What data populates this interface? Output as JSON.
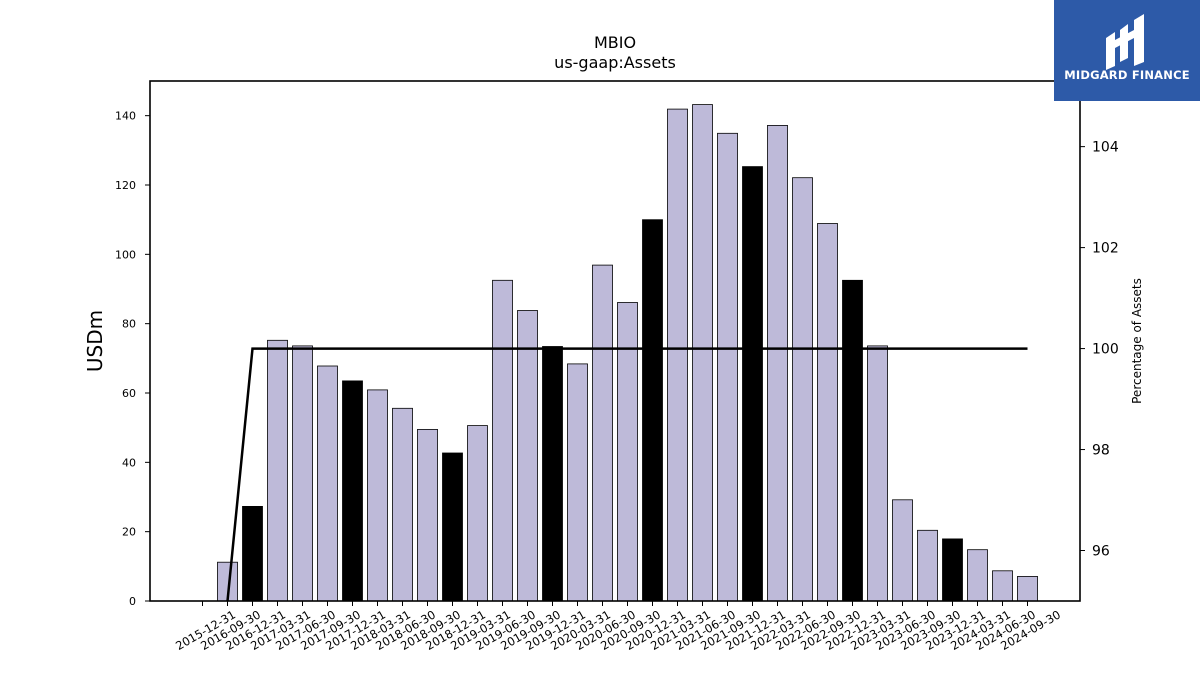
{
  "brand": {
    "name": "MIDGARD FINANCE",
    "background": "#2d5aa8"
  },
  "chart_data": {
    "type": "bar",
    "title": "MBIO",
    "subtitle": "us-gaap:Assets",
    "ylabel": "USDm",
    "y2label": "Percentage of Assets",
    "ylim": [
      0,
      150
    ],
    "y2lim": [
      95.0,
      105.3
    ],
    "yticks": [
      0,
      20,
      40,
      60,
      80,
      100,
      120,
      140
    ],
    "y2ticks": [
      96,
      98,
      100,
      102,
      104
    ],
    "categories": [
      "2015-12-31",
      "2016-09-30",
      "2016-12-31",
      "2017-03-31",
      "2017-06-30",
      "2017-09-30",
      "2017-12-31",
      "2018-03-31",
      "2018-06-30",
      "2018-09-30",
      "2018-12-31",
      "2019-03-31",
      "2019-06-30",
      "2019-09-30",
      "2019-12-31",
      "2020-03-31",
      "2020-06-30",
      "2020-09-30",
      "2020-12-31",
      "2021-03-31",
      "2021-06-30",
      "2021-09-30",
      "2021-12-31",
      "2022-03-31",
      "2022-06-30",
      "2022-09-30",
      "2022-12-31",
      "2023-03-31",
      "2023-06-30",
      "2023-09-30",
      "2023-12-31",
      "2024-03-31",
      "2024-06-30",
      "2024-09-30"
    ],
    "values": [
      null,
      11.2,
      27.3,
      75.2,
      73.6,
      67.8,
      63.5,
      60.9,
      55.6,
      49.5,
      42.7,
      50.6,
      92.5,
      83.8,
      73.4,
      68.4,
      96.9,
      86.1,
      110.0,
      141.9,
      143.2,
      134.9,
      125.3,
      137.2,
      122.1,
      108.9,
      92.5,
      73.6,
      29.2,
      20.4,
      17.9,
      14.8,
      8.7,
      7.1
    ],
    "highlight": [
      false,
      false,
      true,
      false,
      false,
      false,
      true,
      false,
      false,
      false,
      true,
      false,
      false,
      false,
      true,
      false,
      false,
      false,
      true,
      false,
      false,
      false,
      true,
      false,
      false,
      false,
      true,
      false,
      false,
      false,
      true,
      false,
      false,
      false
    ],
    "line_values": [
      null,
      95.0,
      100,
      100,
      100,
      100,
      100,
      100,
      100,
      100,
      100,
      100,
      100,
      100,
      100,
      100,
      100,
      100,
      100,
      100,
      100,
      100,
      100,
      100,
      100,
      100,
      100,
      100,
      100,
      100,
      100,
      100,
      100,
      100
    ],
    "line_start_value": 100,
    "colors": {
      "bar": "#bebad9",
      "highlight": "#000000",
      "edge": "#000000",
      "line": "#000000"
    }
  }
}
